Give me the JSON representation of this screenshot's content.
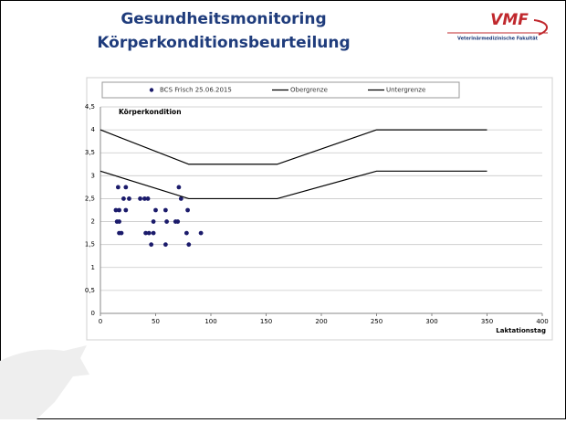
{
  "slide": {
    "title": [
      "Gesundheitsmonitoring",
      "Körperkonditionsbeurteilung"
    ],
    "logo": {
      "main": "VMF",
      "sub": "Veterinärmedizinische Fakultät"
    }
  },
  "chart_data": {
    "type": "scatter",
    "annotation": "Körperkondition",
    "xlabel": "Laktationstag",
    "xlim": [
      0,
      400
    ],
    "xticks": [
      0,
      50,
      100,
      150,
      200,
      250,
      300,
      350,
      400
    ],
    "ylim": [
      0,
      4.5
    ],
    "yticks": [
      0,
      {
        "value": 0.5,
        "label": "0,5"
      },
      1,
      {
        "value": 1.5,
        "label": "1,5"
      },
      2,
      {
        "value": 2.5,
        "label": "2,5"
      },
      3,
      {
        "value": 3.5,
        "label": "3,5"
      },
      4,
      {
        "value": 4.5,
        "label": "4,5"
      }
    ],
    "grid": true,
    "series": [
      {
        "name": "BCS Frisch 25.06.2015",
        "type": "scatter",
        "color": "#1b1b6b",
        "x": [
          16,
          23,
          14,
          17,
          23,
          21,
          26,
          36,
          40,
          43,
          15,
          17,
          17,
          19,
          41,
          44,
          48,
          46,
          48,
          50,
          59,
          60,
          59,
          68,
          70,
          71,
          73,
          79,
          78,
          80,
          91
        ],
        "values": [
          2.75,
          2.75,
          2.25,
          2.25,
          2.25,
          2.5,
          2.5,
          2.5,
          2.5,
          2.5,
          2.0,
          2.0,
          1.75,
          1.75,
          1.75,
          1.75,
          1.75,
          1.5,
          2.0,
          2.25,
          2.25,
          2.0,
          1.5,
          2.0,
          2.0,
          2.75,
          2.5,
          2.25,
          1.75,
          1.5,
          1.75
        ]
      },
      {
        "name": "Obergrenze",
        "type": "line",
        "color": "#000000",
        "x": [
          0,
          80,
          160,
          250,
          350
        ],
        "values": [
          4,
          3.25,
          3.25,
          4,
          4
        ]
      },
      {
        "name": "Untergrenze",
        "type": "line",
        "color": "#000000",
        "x": [
          0,
          80,
          160,
          250,
          350
        ],
        "values": [
          3.1,
          2.5,
          2.5,
          3.1,
          3.1
        ]
      }
    ]
  }
}
